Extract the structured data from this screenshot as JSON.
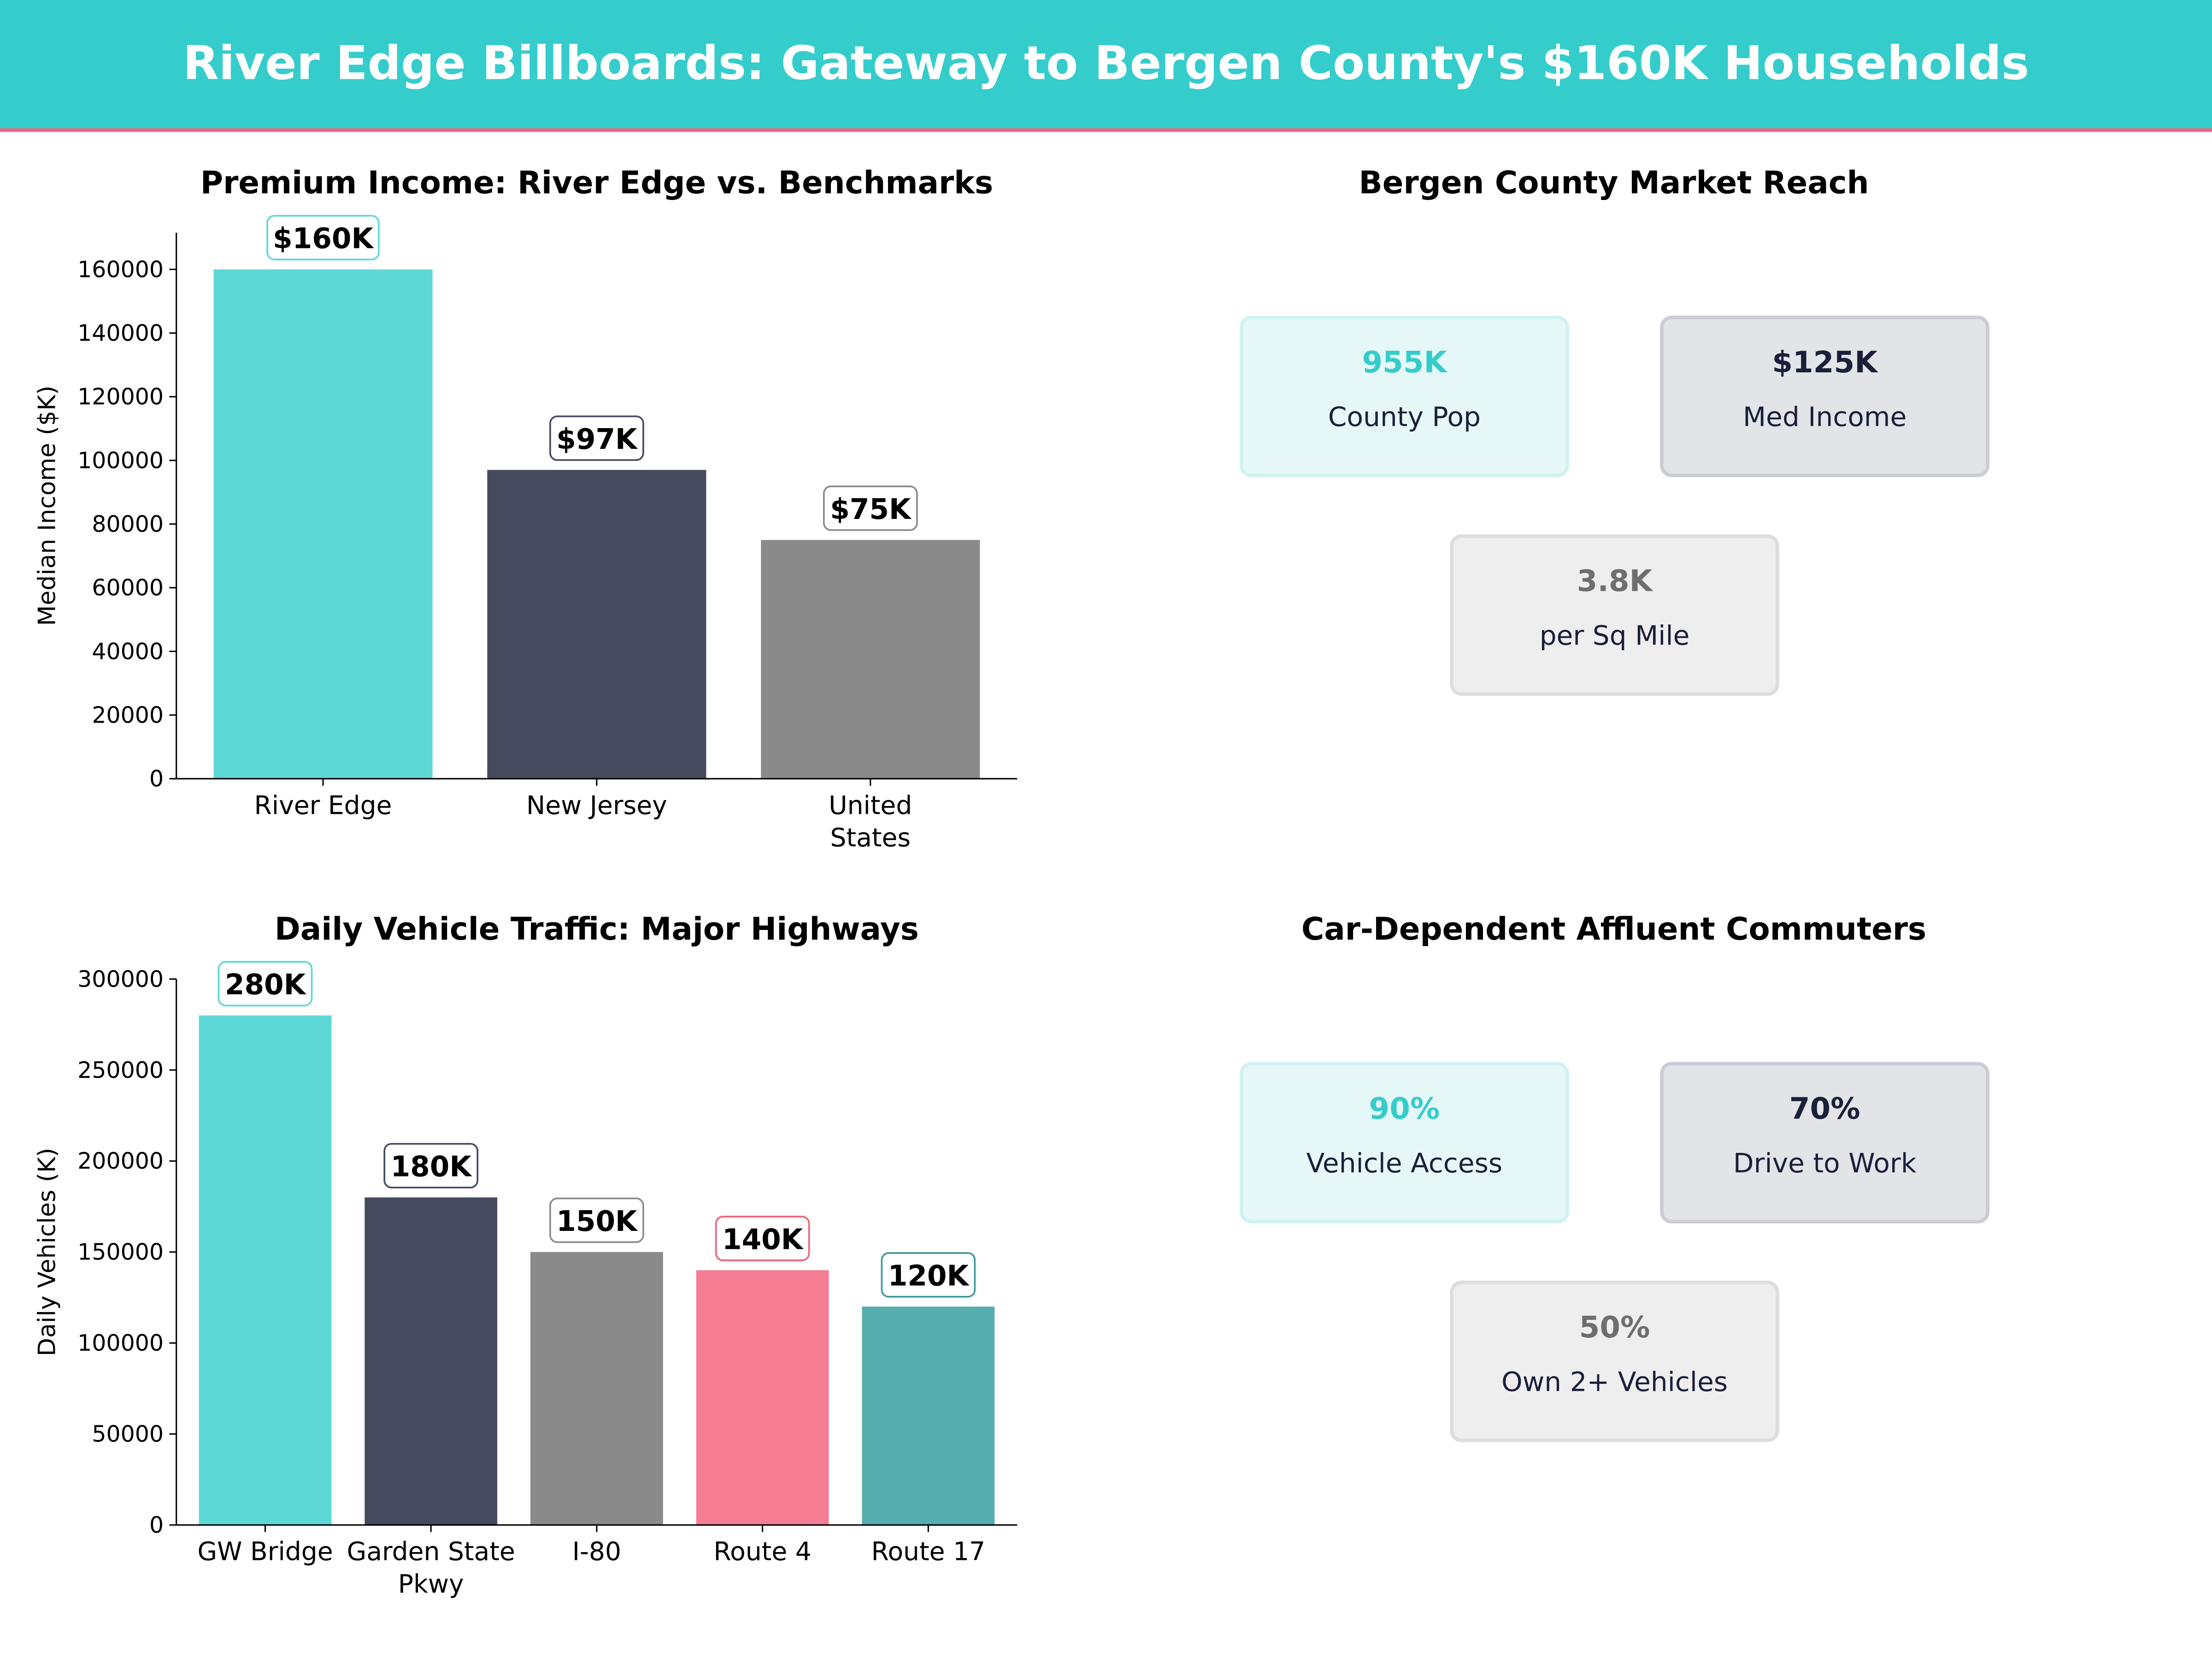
{
  "header": {
    "title": "River Edge Billboards: Gateway to Bergen County's $160K Households",
    "bg": "#35CCCC",
    "accent_line": "#F0637A"
  },
  "chart_data": [
    {
      "type": "bar",
      "title": "Premium Income: River Edge vs. Benchmarks",
      "xlabel": "",
      "ylabel": "Median Income ($K)",
      "categories": [
        "River Edge",
        "New Jersey",
        "United States"
      ],
      "category_lines": [
        [
          "River Edge"
        ],
        [
          "New Jersey"
        ],
        [
          "United",
          "States"
        ]
      ],
      "values": [
        160000,
        97000,
        75000
      ],
      "data_labels": [
        "$160K",
        "$97K",
        "$75K"
      ],
      "colors": [
        "#5DD8D6",
        "#454A5F",
        "#8A8A8A"
      ],
      "label_edge_colors": [
        "#5DD8D6",
        "#454A5F",
        "#8A8A8A"
      ],
      "ylim": [
        0,
        171500
      ],
      "yticks": [
        0,
        20000,
        40000,
        60000,
        80000,
        100000,
        120000,
        140000,
        160000
      ],
      "grid": false
    },
    {
      "type": "bar",
      "title": "Daily Vehicle Traffic: Major Highways",
      "xlabel": "",
      "ylabel": "Daily Vehicles (K)",
      "categories": [
        "GW Bridge",
        "Garden State Pkwy",
        "I-80",
        "Route 4",
        "Route 17"
      ],
      "category_lines": [
        [
          "GW Bridge"
        ],
        [
          "Garden State",
          "Pkwy"
        ],
        [
          "I-80"
        ],
        [
          "Route 4"
        ],
        [
          "Route 17"
        ]
      ],
      "values": [
        280000,
        180000,
        150000,
        140000,
        120000
      ],
      "data_labels": [
        "280K",
        "180K",
        "150K",
        "140K",
        "120K"
      ],
      "colors": [
        "#5DD8D6",
        "#454A5F",
        "#8A8A8A",
        "#F57D93",
        "#56ADAD"
      ],
      "label_edge_colors": [
        "#5DD8D6",
        "#454A5F",
        "#8A8A8A",
        "#F0637A",
        "#3E9A9A"
      ],
      "ylim": [
        0,
        300000
      ],
      "yticks": [
        0,
        50000,
        100000,
        150000,
        200000,
        250000,
        300000
      ],
      "grid": false
    }
  ],
  "panels": [
    {
      "title": "Bergen County Market Reach",
      "cards": [
        {
          "value": "955K",
          "label": "County Pop",
          "theme": "teal"
        },
        {
          "value": "$125K",
          "label": "Med Income",
          "theme": "navy"
        },
        {
          "value": "3.8K",
          "label": "per Sq Mile",
          "theme": "gray"
        }
      ]
    },
    {
      "title": "Car-Dependent Affluent Commuters",
      "cards": [
        {
          "value": "90%",
          "label": "Vehicle Access",
          "theme": "teal"
        },
        {
          "value": "70%",
          "label": "Drive to Work",
          "theme": "navy"
        },
        {
          "value": "50%",
          "label": "Own 2+ Vehicles",
          "theme": "gray"
        }
      ]
    }
  ],
  "themes": {
    "teal": {
      "bg": "#E6F7F7",
      "border": "#D2F2F2",
      "value": "#35CCCC"
    },
    "navy": {
      "bg": "#E3E4E8",
      "border": "#CBCCD4",
      "value": "#1A1F3A"
    },
    "gray": {
      "bg": "#EEEEEE",
      "border": "#DDDDDD",
      "value": "#6E6E6E"
    },
    "label_color": "#1A1F3A"
  }
}
